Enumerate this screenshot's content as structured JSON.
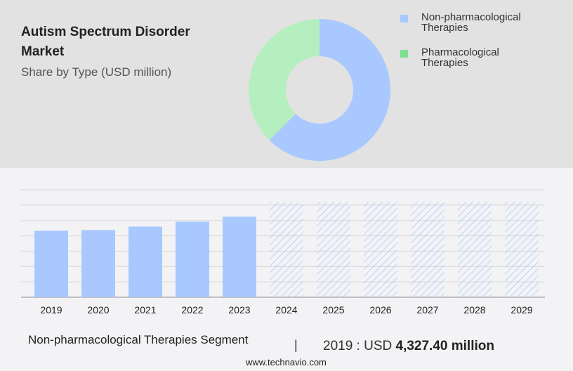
{
  "title": "Autism Spectrum Disorder Market",
  "subtitle": "Share by Type (USD million)",
  "legend": [
    {
      "label": "Non-pharmacological Therapies",
      "color": "#a8c8ff"
    },
    {
      "label": "Pharmacological Therapies",
      "color": "#7ce08f"
    }
  ],
  "footer": {
    "segment": "Non-pharmacological Therapies Segment",
    "separator": "|",
    "year_label": "2019 : USD ",
    "value": "4,327.40 million",
    "url": "www.technavio.com"
  },
  "chart_data": [
    {
      "type": "pie",
      "donut": true,
      "slices": [
        {
          "name": "Non-pharmacological Therapies",
          "value": 62.5,
          "color": "#a8c8ff"
        },
        {
          "name": "Pharmacological Therapies",
          "value": 37.5,
          "color": "#b6efbf"
        }
      ]
    },
    {
      "type": "bar",
      "categories": [
        "2019",
        "2020",
        "2021",
        "2022",
        "2023",
        "2024",
        "2025",
        "2026",
        "2027",
        "2028",
        "2029"
      ],
      "values": [
        4327.4,
        4370,
        4600,
        4920,
        5240,
        null,
        null,
        null,
        null,
        null,
        null
      ],
      "forecast": [
        "2024",
        "2025",
        "2026",
        "2027",
        "2028",
        "2029"
      ],
      "ylim": [
        0,
        7000
      ],
      "grid": true,
      "color": "#a8c8ff"
    }
  ]
}
